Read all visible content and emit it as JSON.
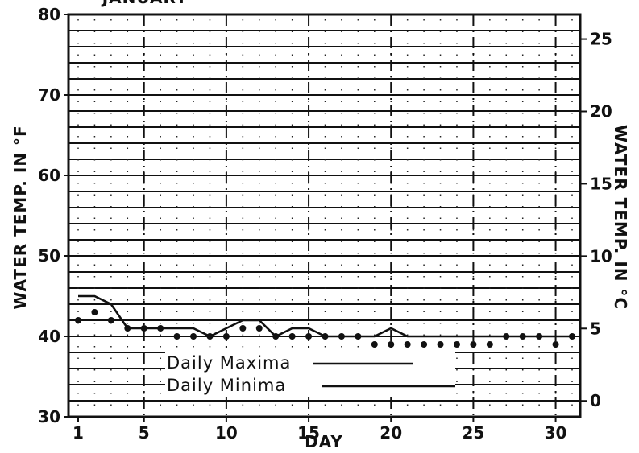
{
  "chart_data": {
    "type": "line",
    "title": "JANUARY",
    "xlabel": "DAY",
    "ylabel": "WATER TEMP. IN °F",
    "y2label": "WATER TEMP. IN °C",
    "xlim": [
      1,
      31
    ],
    "ylim": [
      30,
      80
    ],
    "y2lim": [
      -1.1,
      26.7
    ],
    "x_ticks": [
      1,
      5,
      10,
      15,
      20,
      25,
      30
    ],
    "y_ticks": [
      30,
      40,
      50,
      60,
      70,
      80
    ],
    "y2_ticks": [
      0,
      5,
      10,
      15,
      20,
      25
    ],
    "x_tick_labels": [
      "1",
      "5",
      "10",
      "15",
      "20",
      "25",
      "30"
    ],
    "y_tick_labels": [
      "30",
      "40",
      "50",
      "60",
      "70",
      "80"
    ],
    "y2_tick_labels": [
      "0",
      "5",
      "10",
      "15",
      "20",
      "25"
    ],
    "grid": true,
    "legend_position": "lower-left",
    "series": [
      {
        "name": "Daily Maxima",
        "style": "line",
        "x": [
          1,
          2,
          3,
          4,
          5,
          6,
          7,
          8,
          9,
          10,
          11,
          12,
          13,
          14,
          15,
          16,
          17,
          18,
          19,
          20,
          21,
          22,
          23,
          24,
          25,
          26,
          27,
          28,
          29,
          30,
          31
        ],
        "values": [
          45,
          45,
          44,
          41,
          41,
          41,
          41,
          41,
          40,
          41,
          42,
          42,
          40,
          41,
          41,
          40,
          40,
          40,
          40,
          41,
          40,
          40,
          40,
          40,
          40,
          40,
          40,
          40,
          40,
          40,
          40
        ]
      },
      {
        "name": "Daily Minima",
        "style": "dots",
        "x": [
          1,
          2,
          3,
          4,
          5,
          6,
          7,
          8,
          9,
          10,
          11,
          12,
          13,
          14,
          15,
          16,
          17,
          18,
          19,
          20,
          21,
          22,
          23,
          24,
          25,
          26,
          27,
          28,
          29,
          30,
          31
        ],
        "values": [
          42,
          43,
          42,
          41,
          41,
          41,
          40,
          40,
          40,
          40,
          41,
          41,
          40,
          40,
          40,
          40,
          40,
          40,
          39,
          39,
          39,
          39,
          39,
          39,
          39,
          39,
          40,
          40,
          40,
          39,
          40
        ]
      }
    ]
  }
}
